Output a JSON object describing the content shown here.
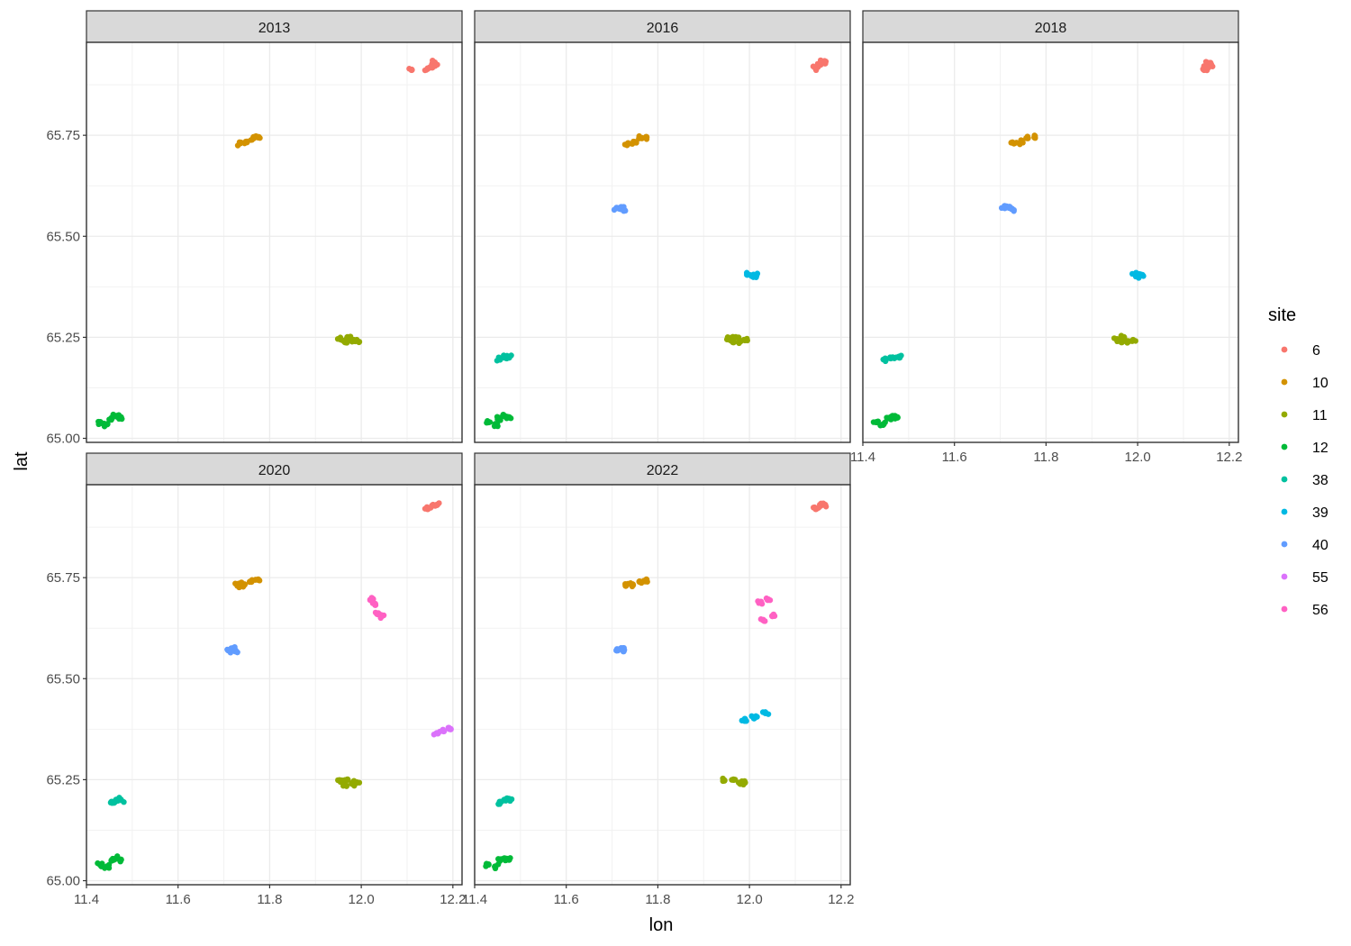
{
  "chart_data": {
    "type": "scatter",
    "facet_variable": "year",
    "panels": [
      {
        "label": "2013",
        "clusters": [
          {
            "site": "6",
            "points": [
              [
                12.11,
                65.912
              ],
              [
                12.145,
                65.915
              ],
              [
                12.155,
                65.925
              ],
              [
                12.16,
                65.93
              ],
              [
                12.155,
                65.918
              ]
            ]
          },
          {
            "site": "10",
            "points": [
              [
                11.735,
                65.73
              ],
              [
                11.75,
                65.733
              ],
              [
                11.765,
                65.743
              ],
              [
                11.775,
                65.745
              ]
            ]
          },
          {
            "site": "11",
            "points": [
              [
                11.955,
                65.245
              ],
              [
                11.97,
                65.25
              ],
              [
                11.98,
                65.24
              ],
              [
                11.99,
                65.243
              ],
              [
                11.965,
                65.238
              ]
            ]
          },
          {
            "site": "12",
            "points": [
              [
                11.43,
                65.04
              ],
              [
                11.445,
                65.035
              ],
              [
                11.455,
                65.05
              ],
              [
                11.465,
                65.055
              ],
              [
                11.475,
                65.052
              ]
            ]
          }
        ]
      },
      {
        "label": "2016",
        "clusters": [
          {
            "site": "6",
            "points": [
              [
                12.145,
                65.915
              ],
              [
                12.155,
                65.925
              ],
              [
                12.16,
                65.93
              ],
              [
                12.165,
                65.928
              ]
            ]
          },
          {
            "site": "10",
            "points": [
              [
                11.735,
                65.73
              ],
              [
                11.75,
                65.733
              ],
              [
                11.765,
                65.743
              ],
              [
                11.775,
                65.745
              ]
            ]
          },
          {
            "site": "40",
            "points": [
              [
                11.71,
                65.57
              ],
              [
                11.72,
                65.572
              ],
              [
                11.725,
                65.568
              ]
            ]
          },
          {
            "site": "39",
            "points": [
              [
                11.995,
                65.405
              ],
              [
                12.005,
                65.402
              ],
              [
                12.015,
                65.404
              ]
            ]
          },
          {
            "site": "11",
            "points": [
              [
                11.955,
                65.245
              ],
              [
                11.97,
                65.25
              ],
              [
                11.98,
                65.24
              ],
              [
                11.99,
                65.243
              ],
              [
                11.965,
                65.238
              ]
            ]
          },
          {
            "site": "38",
            "points": [
              [
                11.455,
                65.195
              ],
              [
                11.465,
                65.2
              ],
              [
                11.475,
                65.2
              ]
            ]
          },
          {
            "site": "12",
            "points": [
              [
                11.43,
                65.04
              ],
              [
                11.445,
                65.035
              ],
              [
                11.455,
                65.05
              ],
              [
                11.465,
                65.055
              ],
              [
                11.475,
                65.052
              ]
            ]
          }
        ]
      },
      {
        "label": "2018",
        "clusters": [
          {
            "site": "6",
            "points": [
              [
                12.145,
                65.912
              ],
              [
                12.15,
                65.92
              ],
              [
                12.155,
                65.928
              ],
              [
                12.16,
                65.925
              ]
            ]
          },
          {
            "site": "10",
            "points": [
              [
                11.73,
                65.73
              ],
              [
                11.745,
                65.733
              ],
              [
                11.76,
                65.743
              ],
              [
                11.775,
                65.745
              ]
            ]
          },
          {
            "site": "40",
            "points": [
              [
                11.71,
                65.57
              ],
              [
                11.72,
                65.572
              ],
              [
                11.725,
                65.568
              ]
            ]
          },
          {
            "site": "39",
            "points": [
              [
                11.995,
                65.405
              ],
              [
                12.005,
                65.402
              ],
              [
                12.01,
                65.404
              ]
            ]
          },
          {
            "site": "11",
            "points": [
              [
                11.955,
                65.245
              ],
              [
                11.97,
                65.25
              ],
              [
                11.98,
                65.24
              ],
              [
                11.99,
                65.243
              ],
              [
                11.965,
                65.238
              ]
            ]
          },
          {
            "site": "38",
            "points": [
              [
                11.45,
                65.195
              ],
              [
                11.465,
                65.2
              ],
              [
                11.48,
                65.2
              ]
            ]
          },
          {
            "site": "12",
            "points": [
              [
                11.43,
                65.04
              ],
              [
                11.445,
                65.035
              ],
              [
                11.455,
                65.05
              ],
              [
                11.465,
                65.055
              ],
              [
                11.475,
                65.052
              ]
            ]
          }
        ]
      },
      {
        "label": "2020",
        "clusters": [
          {
            "site": "6",
            "points": [
              [
                12.145,
                65.92
              ],
              [
                12.155,
                65.928
              ],
              [
                12.165,
                65.93
              ]
            ]
          },
          {
            "site": "10",
            "points": [
              [
                11.73,
                65.73
              ],
              [
                11.745,
                65.733
              ],
              [
                11.76,
                65.74
              ],
              [
                11.775,
                65.745
              ]
            ]
          },
          {
            "site": "56",
            "points": [
              [
                12.02,
                65.695
              ],
              [
                12.03,
                65.685
              ],
              [
                12.035,
                65.66
              ],
              [
                12.045,
                65.655
              ]
            ]
          },
          {
            "site": "40",
            "points": [
              [
                11.71,
                65.57
              ],
              [
                11.72,
                65.575
              ],
              [
                11.725,
                65.568
              ]
            ]
          },
          {
            "site": "55",
            "points": [
              [
                12.165,
                65.365
              ],
              [
                12.18,
                65.37
              ],
              [
                12.195,
                65.375
              ]
            ]
          },
          {
            "site": "11",
            "points": [
              [
                11.955,
                65.245
              ],
              [
                11.97,
                65.25
              ],
              [
                11.98,
                65.24
              ],
              [
                11.99,
                65.243
              ],
              [
                11.965,
                65.238
              ]
            ]
          },
          {
            "site": "38",
            "points": [
              [
                11.455,
                65.195
              ],
              [
                11.465,
                65.2
              ],
              [
                11.475,
                65.2
              ]
            ]
          },
          {
            "site": "12",
            "points": [
              [
                11.43,
                65.04
              ],
              [
                11.445,
                65.035
              ],
              [
                11.455,
                65.05
              ],
              [
                11.465,
                65.055
              ],
              [
                11.475,
                65.052
              ]
            ]
          }
        ]
      },
      {
        "label": "2022",
        "clusters": [
          {
            "site": "6",
            "points": [
              [
                12.145,
                65.92
              ],
              [
                12.155,
                65.928
              ],
              [
                12.165,
                65.93
              ]
            ]
          },
          {
            "site": "10",
            "points": [
              [
                11.73,
                65.73
              ],
              [
                11.745,
                65.733
              ],
              [
                11.76,
                65.74
              ],
              [
                11.775,
                65.745
              ]
            ]
          },
          {
            "site": "56",
            "points": [
              [
                12.025,
                65.69
              ],
              [
                12.04,
                65.695
              ],
              [
                12.03,
                65.645
              ],
              [
                12.05,
                65.655
              ]
            ]
          },
          {
            "site": "40",
            "points": [
              [
                11.71,
                65.57
              ],
              [
                11.72,
                65.575
              ],
              [
                11.725,
                65.568
              ]
            ]
          },
          {
            "site": "39",
            "points": [
              [
                11.99,
                65.4
              ],
              [
                12.01,
                65.402
              ],
              [
                12.035,
                65.415
              ]
            ]
          },
          {
            "site": "11",
            "points": [
              [
                11.945,
                65.248
              ],
              [
                11.965,
                65.25
              ],
              [
                11.98,
                65.24
              ],
              [
                11.99,
                65.243
              ]
            ]
          },
          {
            "site": "38",
            "points": [
              [
                11.455,
                65.195
              ],
              [
                11.465,
                65.2
              ],
              [
                11.475,
                65.2
              ]
            ]
          },
          {
            "site": "12",
            "points": [
              [
                11.43,
                65.04
              ],
              [
                11.445,
                65.035
              ],
              [
                11.455,
                65.05
              ],
              [
                11.465,
                65.055
              ],
              [
                11.475,
                65.052
              ]
            ]
          }
        ]
      }
    ],
    "x_ticks": [
      "11.4",
      "11.6",
      "11.8",
      "12.0",
      "12.2"
    ],
    "y_ticks": [
      "65.00",
      "65.25",
      "65.50",
      "65.75"
    ],
    "xlim": [
      11.4,
      12.22
    ],
    "ylim": [
      64.99,
      65.98
    ],
    "xlabel": "lon",
    "ylabel": "lat",
    "legend": {
      "title": "site",
      "position": "right",
      "items": [
        {
          "label": "6",
          "color": "#F8766D"
        },
        {
          "label": "10",
          "color": "#D39200"
        },
        {
          "label": "11",
          "color": "#93AA00"
        },
        {
          "label": "12",
          "color": "#00BA38"
        },
        {
          "label": "38",
          "color": "#00C19F"
        },
        {
          "label": "39",
          "color": "#00B9E3"
        },
        {
          "label": "40",
          "color": "#619CFF"
        },
        {
          "label": "55",
          "color": "#DB72FB"
        },
        {
          "label": "56",
          "color": "#FF61C3"
        }
      ]
    }
  }
}
